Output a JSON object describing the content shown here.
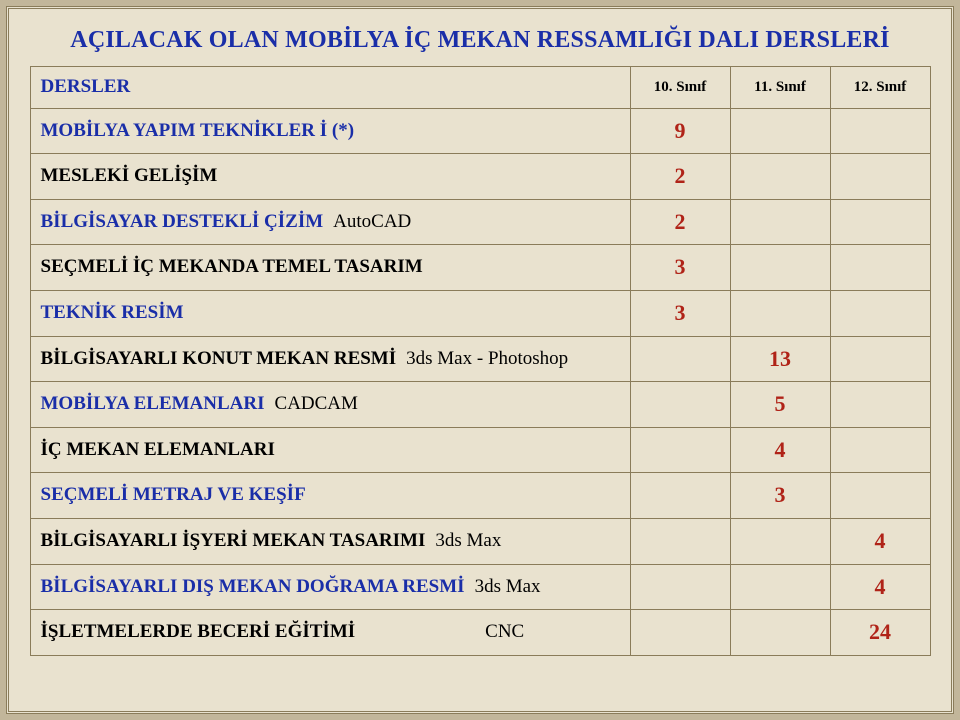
{
  "colors": {
    "page_bg": "#e9e2cf",
    "outer_bg": "#c2b69a",
    "border": "#8a7c5a",
    "blue": "#1a2ea8",
    "red": "#b02318",
    "black": "#000000"
  },
  "title": "AÇILACAK OLAN MOBİLYA İÇ MEKAN RESSAMLIĞI DALI DERSLERİ",
  "headers": {
    "courses": "DERSLER",
    "c1": "10. Sınıf",
    "c2": "11. Sınıf",
    "c3": "12. Sınıf"
  },
  "rows": [
    {
      "name": "MOBİLYA YAPIM TEKNİKLER İ (*)",
      "note": "",
      "color": "blue",
      "v10": "9",
      "v11": "",
      "v12": ""
    },
    {
      "name": "MESLEKİ GELİŞİM",
      "note": "",
      "color": "black",
      "v10": "2",
      "v11": "",
      "v12": ""
    },
    {
      "name": "BİLGİSAYAR DESTEKLİ ÇİZİM",
      "note": "AutoCAD",
      "color": "blue",
      "v10": "2",
      "v11": "",
      "v12": ""
    },
    {
      "name": "SEÇMELİ İÇ MEKANDA TEMEL TASARIM",
      "note": "",
      "color": "black",
      "v10": "3",
      "v11": "",
      "v12": ""
    },
    {
      "name": "TEKNİK RESİM",
      "note": "",
      "color": "blue",
      "v10": "3",
      "v11": "",
      "v12": ""
    },
    {
      "name": "BİLGİSAYARLI KONUT MEKAN RESMİ",
      "note": "3ds Max - Photoshop",
      "color": "black",
      "v10": "",
      "v11": "13",
      "v12": ""
    },
    {
      "name": "MOBİLYA ELEMANLARI",
      "note": "CADCAM",
      "color": "blue",
      "v10": "",
      "v11": "5",
      "v12": ""
    },
    {
      "name": "İÇ MEKAN ELEMANLARI",
      "note": "",
      "color": "black",
      "v10": "",
      "v11": "4",
      "v12": ""
    },
    {
      "name": "SEÇMELİ METRAJ VE KEŞİF",
      "note": "",
      "color": "blue",
      "v10": "",
      "v11": "3",
      "v12": ""
    },
    {
      "name": "BİLGİSAYARLI İŞYERİ MEKAN TASARIMI",
      "note": "3ds Max",
      "color": "black",
      "v10": "",
      "v11": "",
      "v12": "4"
    },
    {
      "name": "BİLGİSAYARLI DIŞ MEKAN DOĞRAMA RESMİ",
      "note": "3ds Max",
      "color": "blue",
      "v10": "",
      "v11": "",
      "v12": "4"
    },
    {
      "name": "İŞLETMELERDE BECERİ EĞİTİMİ",
      "note": "CNC",
      "note_spaced": true,
      "color": "black",
      "v10": "",
      "v11": "",
      "v12": "24"
    }
  ]
}
